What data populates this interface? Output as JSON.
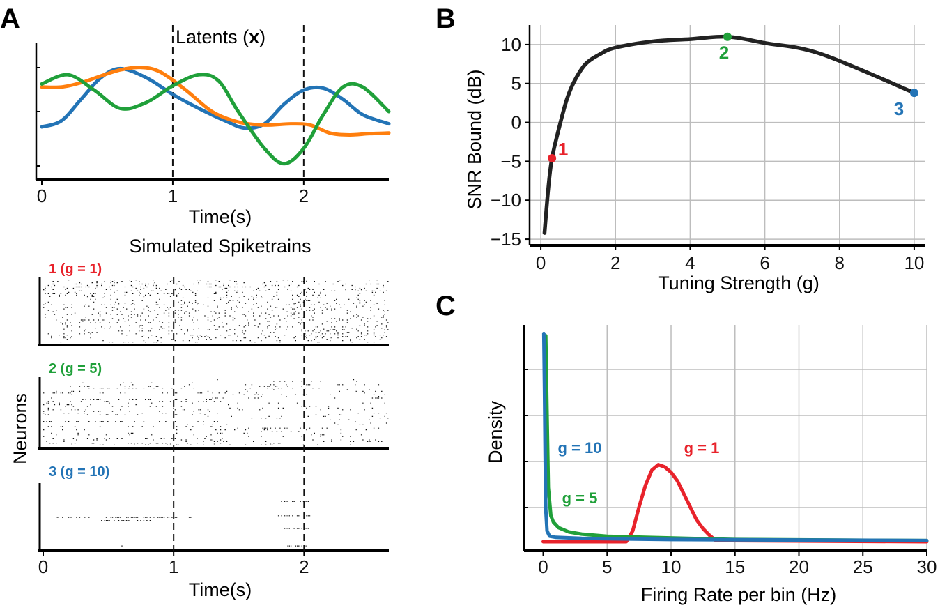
{
  "colors": {
    "blue": "#2374b6",
    "orange": "#ff7f0e",
    "green": "#20a03a",
    "red": "#e8232b",
    "black": "#222222",
    "grid": "#bdbdbd"
  },
  "panel_labels": {
    "a": "A",
    "b": "B",
    "c": "C"
  },
  "chart_data": [
    {
      "id": "A-latents",
      "type": "line",
      "title_prefix": "Latents (",
      "title_bold": "x",
      "title_suffix": ")",
      "xlabel": "Time(s)",
      "xlim": [
        0,
        2.65
      ],
      "ylim": [
        -1,
        1
      ],
      "xticks": [
        0,
        1,
        2
      ],
      "xtick_labels": [
        "0",
        "1",
        "2"
      ],
      "vlines": [
        1,
        2
      ],
      "series": [
        {
          "name": "blue",
          "color": "blue",
          "x": [
            0,
            0.15,
            0.3,
            0.45,
            0.6,
            0.8,
            1.0,
            1.2,
            1.4,
            1.55,
            1.7,
            1.85,
            2.0,
            2.15,
            2.3,
            2.45,
            2.65
          ],
          "y": [
            -0.25,
            -0.15,
            0.2,
            0.55,
            0.7,
            0.55,
            0.28,
            0.05,
            -0.15,
            -0.27,
            -0.2,
            0.12,
            0.35,
            0.38,
            0.2,
            -0.05,
            -0.2
          ]
        },
        {
          "name": "orange",
          "color": "orange",
          "x": [
            0,
            0.15,
            0.3,
            0.45,
            0.6,
            0.75,
            0.9,
            1.1,
            1.3,
            1.5,
            1.7,
            1.9,
            2.05,
            2.2,
            2.35,
            2.5,
            2.65
          ],
          "y": [
            0.4,
            0.4,
            0.47,
            0.58,
            0.68,
            0.72,
            0.65,
            0.35,
            0.0,
            -0.17,
            -0.22,
            -0.2,
            -0.22,
            -0.35,
            -0.38,
            -0.36,
            -0.35
          ]
        },
        {
          "name": "green",
          "color": "green",
          "x": [
            0,
            0.2,
            0.4,
            0.6,
            0.8,
            1.0,
            1.2,
            1.35,
            1.5,
            1.7,
            1.85,
            2.0,
            2.15,
            2.3,
            2.45,
            2.65
          ],
          "y": [
            0.45,
            0.6,
            0.35,
            0.05,
            0.15,
            0.42,
            0.6,
            0.5,
            0.0,
            -0.6,
            -0.85,
            -0.6,
            -0.05,
            0.4,
            0.4,
            0.0
          ]
        }
      ]
    },
    {
      "id": "A-spikes",
      "type": "raster",
      "title": "Simulated Spiketrains",
      "ylabel": "Neurons",
      "xlabel": "Time(s)",
      "xlim": [
        0,
        2.65
      ],
      "xticks": [
        0,
        1,
        2
      ],
      "xtick_labels": [
        "0",
        "1",
        "2"
      ],
      "rasters": [
        {
          "label": "1 (g = 1)",
          "color": "red"
        },
        {
          "label": "2 (g = 5)",
          "color": "green"
        },
        {
          "label": "3 (g = 10)",
          "color": "blue"
        }
      ]
    },
    {
      "id": "B",
      "type": "line",
      "xlabel": "Tuning Strength (g)",
      "ylabel": "SNR  Bound (dB)",
      "xlim": [
        -0.3,
        10.3
      ],
      "ylim": [
        -15.8,
        12.5
      ],
      "xticks": [
        0,
        2,
        4,
        6,
        8,
        10
      ],
      "xtick_labels": [
        "0",
        "2",
        "4",
        "6",
        "8",
        "10"
      ],
      "yticks": [
        -15,
        -10,
        -5,
        0,
        5,
        10
      ],
      "ytick_labels": [
        "−15",
        "−10",
        "−5",
        "0",
        "5",
        "10"
      ],
      "grid": true,
      "series": [
        {
          "name": "SNR bound",
          "color": "black",
          "x": [
            0.1,
            0.2,
            0.3,
            0.5,
            0.7,
            0.9,
            1.2,
            1.6,
            2.0,
            3.0,
            4.0,
            5.0,
            6.0,
            7.5,
            10.0
          ],
          "y": [
            -14.2,
            -8.5,
            -4.6,
            -0.5,
            3.0,
            5.3,
            7.5,
            8.8,
            9.6,
            10.4,
            10.7,
            11.0,
            10.2,
            8.8,
            3.8
          ]
        }
      ],
      "points": [
        {
          "label": "1",
          "x": 0.3,
          "y": -4.6,
          "color": "red"
        },
        {
          "label": "2",
          "x": 5.0,
          "y": 11.0,
          "color": "green"
        },
        {
          "label": "3",
          "x": 10.0,
          "y": 3.8,
          "color": "blue"
        }
      ]
    },
    {
      "id": "C",
      "type": "line",
      "xlabel": "Firing Rate per bin (Hz)",
      "ylabel": "Density",
      "xlim": [
        -1.5,
        30
      ],
      "ylim": [
        0,
        1
      ],
      "xticks": [
        0,
        5,
        10,
        15,
        20,
        25,
        30
      ],
      "xtick_labels": [
        "0",
        "5",
        "10",
        "15",
        "20",
        "25",
        "30"
      ],
      "grid": true,
      "series": [
        {
          "name": "g = 1",
          "label": "g = 1",
          "color": "red",
          "x": [
            0,
            6.5,
            7.0,
            7.5,
            8.0,
            8.5,
            9.0,
            9.5,
            10.0,
            10.5,
            11.0,
            11.5,
            12.0,
            12.5,
            13.0,
            13.5,
            30
          ],
          "y": [
            0,
            0.0,
            0.05,
            0.16,
            0.26,
            0.33,
            0.355,
            0.345,
            0.32,
            0.28,
            0.22,
            0.16,
            0.1,
            0.06,
            0.03,
            0.005,
            0.0
          ]
        },
        {
          "name": "g = 5",
          "label": "g = 5",
          "color": "green",
          "x": [
            0.2,
            0.3,
            0.4,
            0.6,
            0.8,
            1.2,
            2.0,
            3.0,
            5.0,
            8.0,
            15.0,
            30.0
          ],
          "y": [
            0.95,
            0.6,
            0.25,
            0.12,
            0.09,
            0.065,
            0.045,
            0.035,
            0.025,
            0.02,
            0.01,
            0.005
          ]
        },
        {
          "name": "g = 10",
          "label": "g = 10",
          "color": "blue",
          "x": [
            0.05,
            0.1,
            0.15,
            0.2,
            0.3,
            0.5,
            1.0,
            3.0,
            10.0,
            30.0
          ],
          "y": [
            0.96,
            0.7,
            0.4,
            0.15,
            0.05,
            0.025,
            0.02,
            0.015,
            0.01,
            0.005
          ]
        }
      ]
    }
  ]
}
